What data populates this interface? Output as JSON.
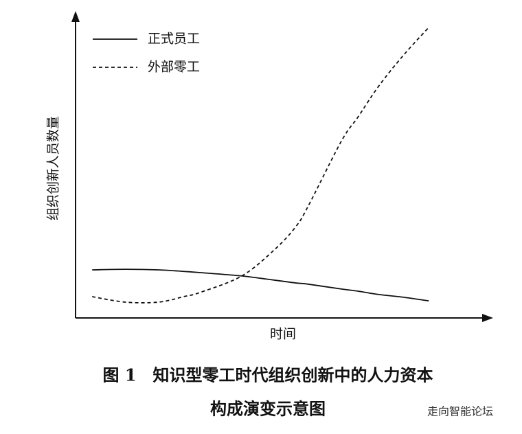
{
  "chart_data": {
    "type": "line",
    "x_label": "时间",
    "y_label": "组织创新人员数量",
    "caption": [
      "图 1　知识型零工时代组织创新中的人力资本",
      "构成演变示意图"
    ],
    "watermark": "走向智能论坛",
    "xlim": [
      0,
      100
    ],
    "ylim": [
      0,
      100
    ],
    "x": [
      4,
      12,
      20,
      26,
      30,
      40,
      48,
      53,
      56,
      64,
      68,
      73,
      79,
      85
    ],
    "series": [
      {
        "name": "正式员工",
        "color": "#111111",
        "dash": false,
        "values": [
          15.8,
          16.0,
          15.8,
          15.3,
          14.9,
          13.8,
          12.4,
          11.5,
          11.1,
          9.5,
          8.8,
          7.7,
          6.8,
          5.6
        ]
      },
      {
        "name": "外部零工",
        "color": "#111111",
        "dash": true,
        "values": [
          7.0,
          5.2,
          5.2,
          7.0,
          8.4,
          13.8,
          22.6,
          30.0,
          36.8,
          58.2,
          66.1,
          76.3,
          86.5,
          95.5
        ]
      }
    ]
  }
}
